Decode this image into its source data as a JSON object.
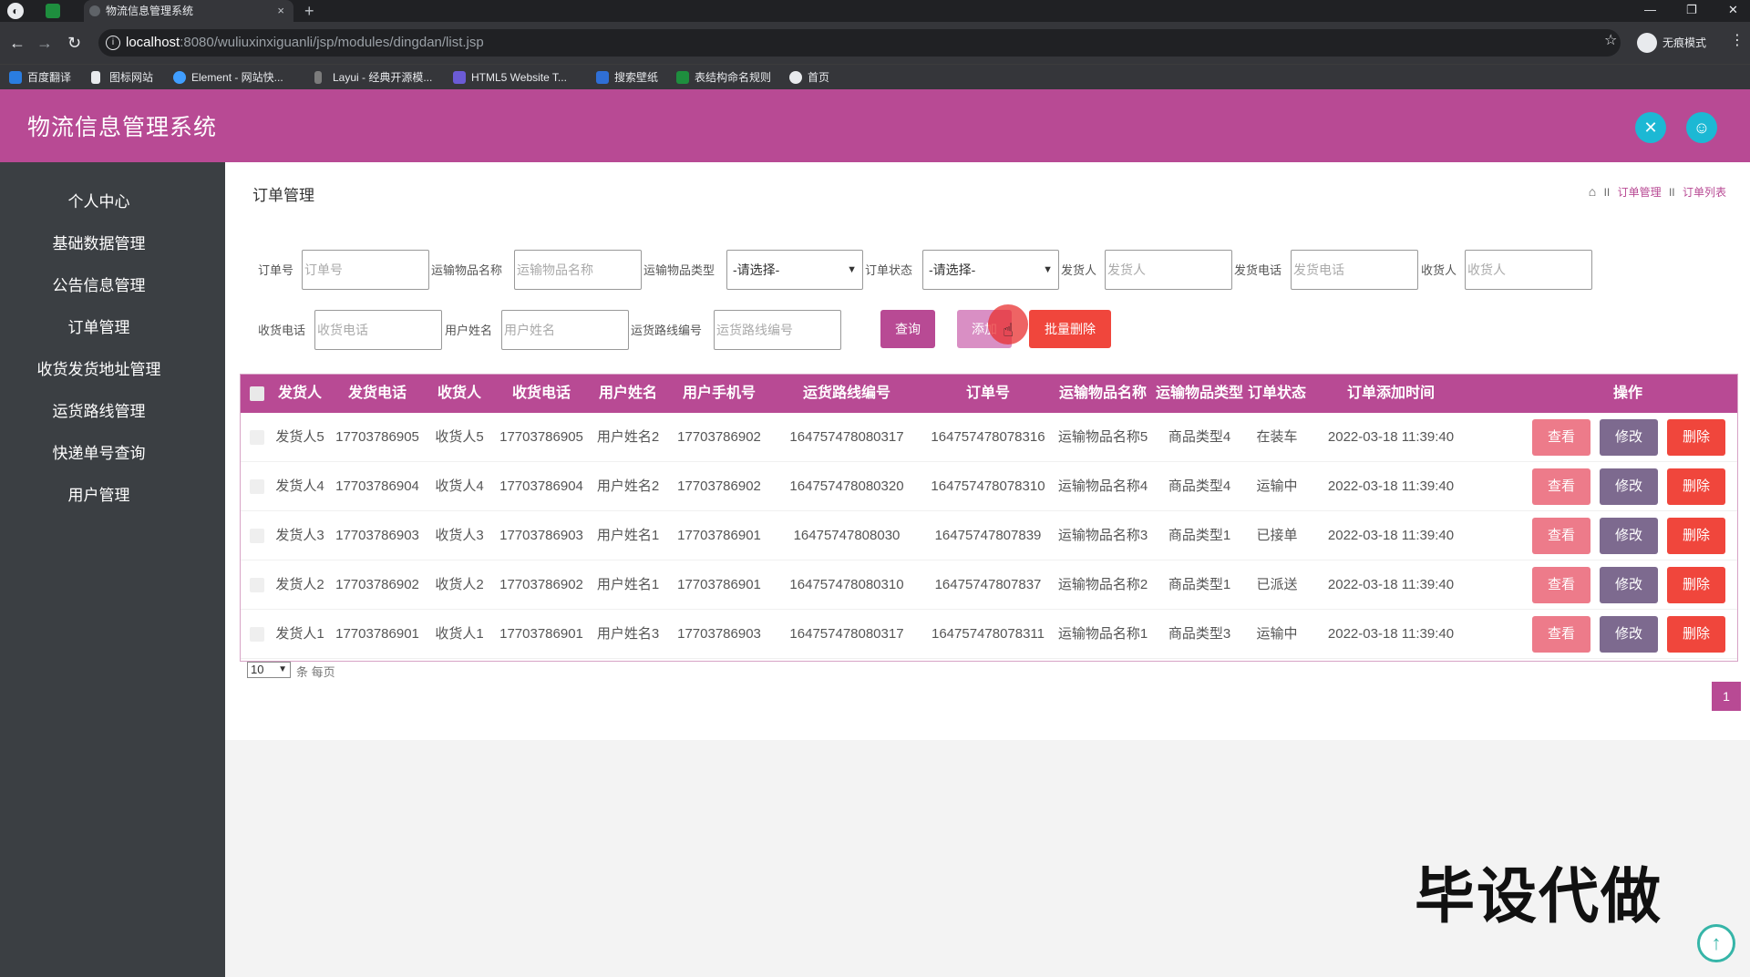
{
  "browser": {
    "tab_title": "物流信息管理系统",
    "tab_close": "×",
    "new_tab": "+",
    "url_host": "localhost",
    "url_path": ":8080/wuliuxinxiguanli/jsp/modules/dingdan/list.jsp",
    "incognito_label": "无痕模式",
    "bookmarks": [
      "百度翻译",
      "图标网站",
      "Element - 网站快...",
      "Layui - 经典开源模...",
      "HTML5 Website T...",
      "搜索壁纸",
      "表结构命名规则",
      "首页"
    ]
  },
  "app": {
    "title": "物流信息管理系统",
    "accent_color": "#b84a94"
  },
  "sidebar": {
    "items": [
      {
        "label": "个人中心"
      },
      {
        "label": "基础数据管理"
      },
      {
        "label": "公告信息管理"
      },
      {
        "label": "订单管理"
      },
      {
        "label": "收货发货地址管理"
      },
      {
        "label": "运货路线管理"
      },
      {
        "label": "快递单号查询"
      },
      {
        "label": "用户管理"
      }
    ]
  },
  "page": {
    "title": "订单管理",
    "breadcrumb": [
      "订单管理",
      "订单列表"
    ],
    "breadcrumb_sep": "II"
  },
  "search": {
    "order_no_label": "订单号",
    "order_no_placeholder": "订单号",
    "item_name_label": "运输物品名称",
    "item_name_placeholder": "运输物品名称",
    "item_type_label": "运输物品类型",
    "item_type_value": "-请选择-",
    "status_label": "订单状态",
    "status_value": "-请选择-",
    "sender_label": "发货人",
    "sender_placeholder": "发货人",
    "sender_phone_label": "发货电话",
    "sender_phone_placeholder": "发货电话",
    "receiver_label": "收货人",
    "receiver_placeholder": "收货人",
    "receiver_phone_label": "收货电话",
    "receiver_phone_placeholder": "收货电话",
    "user_name_label": "用户姓名",
    "user_name_placeholder": "用户姓名",
    "route_no_label": "运货路线编号",
    "route_no_placeholder": "运货路线编号",
    "query_button": "查询",
    "add_button": "添加",
    "batch_delete_button": "批量删除"
  },
  "table": {
    "headers": [
      "发货人",
      "发货电话",
      "收货人",
      "收货电话",
      "用户姓名",
      "用户手机号",
      "运货路线编号",
      "订单号",
      "运输物品名称",
      "运输物品类型",
      "订单状态",
      "订单添加时间",
      "操作"
    ],
    "rows": [
      [
        "发货人5",
        "17703786905",
        "收货人5",
        "17703786905",
        "用户姓名2",
        "17703786902",
        "164757478080317",
        "164757478078316",
        "运输物品名称5",
        "商品类型4",
        "在装车",
        "2022-03-18 11:39:40"
      ],
      [
        "发货人4",
        "17703786904",
        "收货人4",
        "17703786904",
        "用户姓名2",
        "17703786902",
        "164757478080320",
        "164757478078310",
        "运输物品名称4",
        "商品类型4",
        "运输中",
        "2022-03-18 11:39:40"
      ],
      [
        "发货人3",
        "17703786903",
        "收货人3",
        "17703786903",
        "用户姓名1",
        "17703786901",
        "16475747808030",
        "16475747807839",
        "运输物品名称3",
        "商品类型1",
        "已接单",
        "2022-03-18 11:39:40"
      ],
      [
        "发货人2",
        "17703786902",
        "收货人2",
        "17703786902",
        "用户姓名1",
        "17703786901",
        "164757478080310",
        "16475747807837",
        "运输物品名称2",
        "商品类型1",
        "已派送",
        "2022-03-18 11:39:40"
      ],
      [
        "发货人1",
        "17703786901",
        "收货人1",
        "17703786901",
        "用户姓名3",
        "17703786903",
        "164757478080317",
        "164757478078311",
        "运输物品名称1",
        "商品类型3",
        "运输中",
        "2022-03-18 11:39:40"
      ]
    ],
    "view_button": "查看",
    "edit_button": "修改",
    "delete_button": "删除"
  },
  "pager": {
    "page_size": "10",
    "page_size_suffix": "条 每页",
    "current_page": "1"
  },
  "watermark": "毕设代做"
}
